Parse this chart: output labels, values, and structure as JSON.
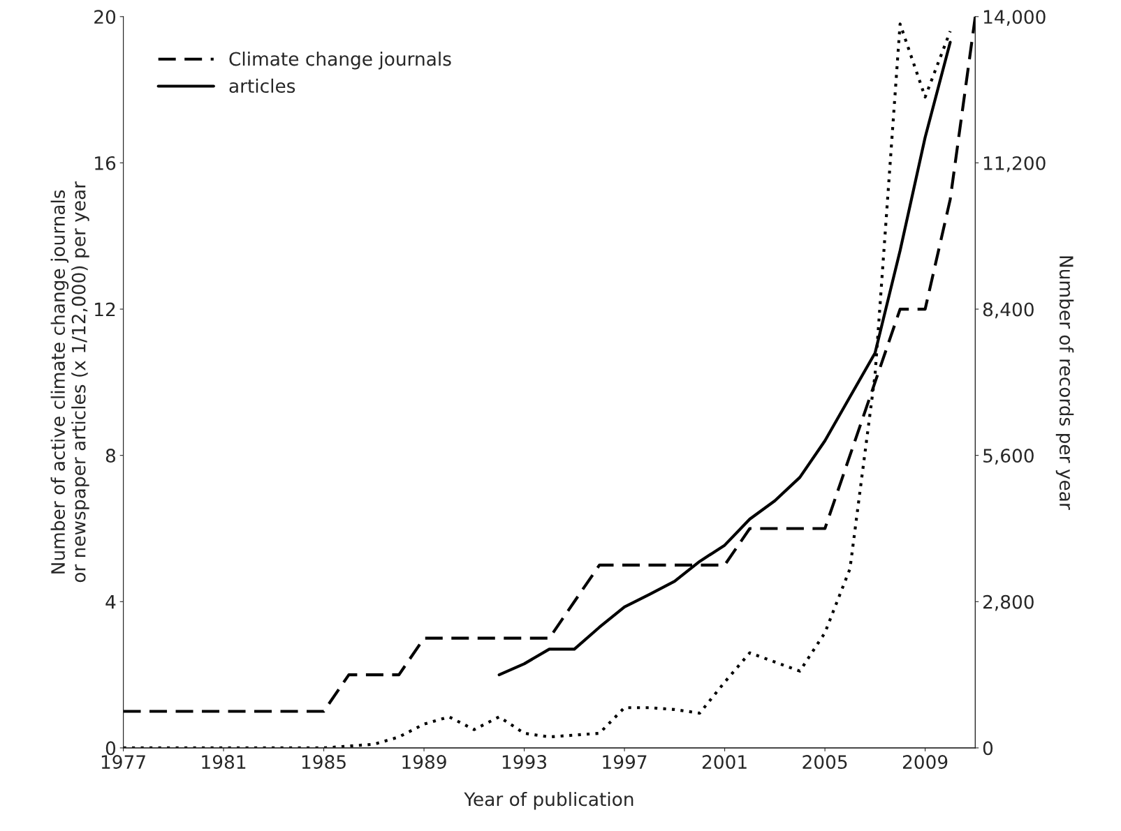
{
  "chart_data": {
    "type": "line",
    "xlabel": "Year of publication",
    "ylabel": "Number of active climate change journals\nor newspaper articles (x 1/12,000) per year",
    "y2label": "Number of records per year",
    "xlim": [
      1977,
      2011
    ],
    "xticks": [
      1977,
      1981,
      1985,
      1989,
      1993,
      1997,
      2001,
      2005,
      2009
    ],
    "ylim": [
      0,
      20
    ],
    "yticks": [
      0,
      4,
      8,
      12,
      16,
      20
    ],
    "y2lim": [
      0,
      14000
    ],
    "y2ticks": [
      0,
      {
        "value": 2800,
        "label": "2,800"
      },
      {
        "value": 5600,
        "label": "5,600"
      },
      {
        "value": 8400,
        "label": "8,400"
      },
      {
        "value": 11200,
        "label": "11,200"
      },
      {
        "value": 14000,
        "label": "14,000"
      }
    ],
    "grid": false,
    "legend": "top left",
    "series": [
      {
        "name": "Climate change journals",
        "color": "#000000",
        "line_style": "dashed",
        "x": [
          1977,
          1978,
          1979,
          1980,
          1981,
          1982,
          1983,
          1984,
          1985,
          1986,
          1987,
          1988,
          1989,
          1990,
          1991,
          1992,
          1993,
          1994,
          1995,
          1996,
          1997,
          1998,
          1999,
          2000,
          2001,
          2002,
          2003,
          2004,
          2005,
          2006,
          2007,
          2008,
          2009,
          2010,
          2011
        ],
        "values": [
          1,
          1,
          1,
          1,
          1,
          1,
          1,
          1,
          1,
          2,
          2,
          2,
          3,
          3,
          3,
          3,
          3,
          3,
          4,
          5,
          5,
          5,
          5,
          5,
          5,
          6,
          6,
          6,
          6,
          8,
          10,
          12,
          12,
          15,
          20
        ]
      },
      {
        "color": "#000000",
        "line_style": "dotted",
        "x": [
          1977,
          1978,
          1979,
          1980,
          1981,
          1982,
          1983,
          1984,
          1985,
          1986,
          1987,
          1988,
          1989,
          1990,
          1991,
          1992,
          1993,
          1994,
          1995,
          1996,
          1997,
          1998,
          1999,
          2000,
          2001,
          2002,
          2003,
          2004,
          2005,
          2006,
          2007,
          2008,
          2009,
          2010
        ],
        "values": [
          0,
          0,
          0,
          0,
          0,
          0,
          0,
          0,
          0,
          0.05,
          0.1,
          0.3,
          0.65,
          0.85,
          0.5,
          0.85,
          0.4,
          0.3,
          0.35,
          0.4,
          1.1,
          1.1,
          1.05,
          0.95,
          1.8,
          2.6,
          2.35,
          2.1,
          3.15,
          4.9,
          10.2,
          19.8,
          17.8,
          19.6
        ]
      },
      {
        "name": "articles",
        "color": "#000000",
        "line_style": "solid",
        "axis": "y2",
        "x": [
          1992,
          1993,
          1994,
          1995,
          1996,
          1997,
          1998,
          1999,
          2000,
          2001,
          2002,
          2003,
          2004,
          2005,
          2006,
          2007,
          2008,
          2009,
          2010
        ],
        "values": [
          1400,
          1610,
          1890,
          1890,
          2310,
          2700,
          2940,
          3190,
          3570,
          3880,
          4380,
          4730,
          5180,
          5880,
          6720,
          7560,
          9520,
          11690,
          13510
        ]
      }
    ]
  }
}
